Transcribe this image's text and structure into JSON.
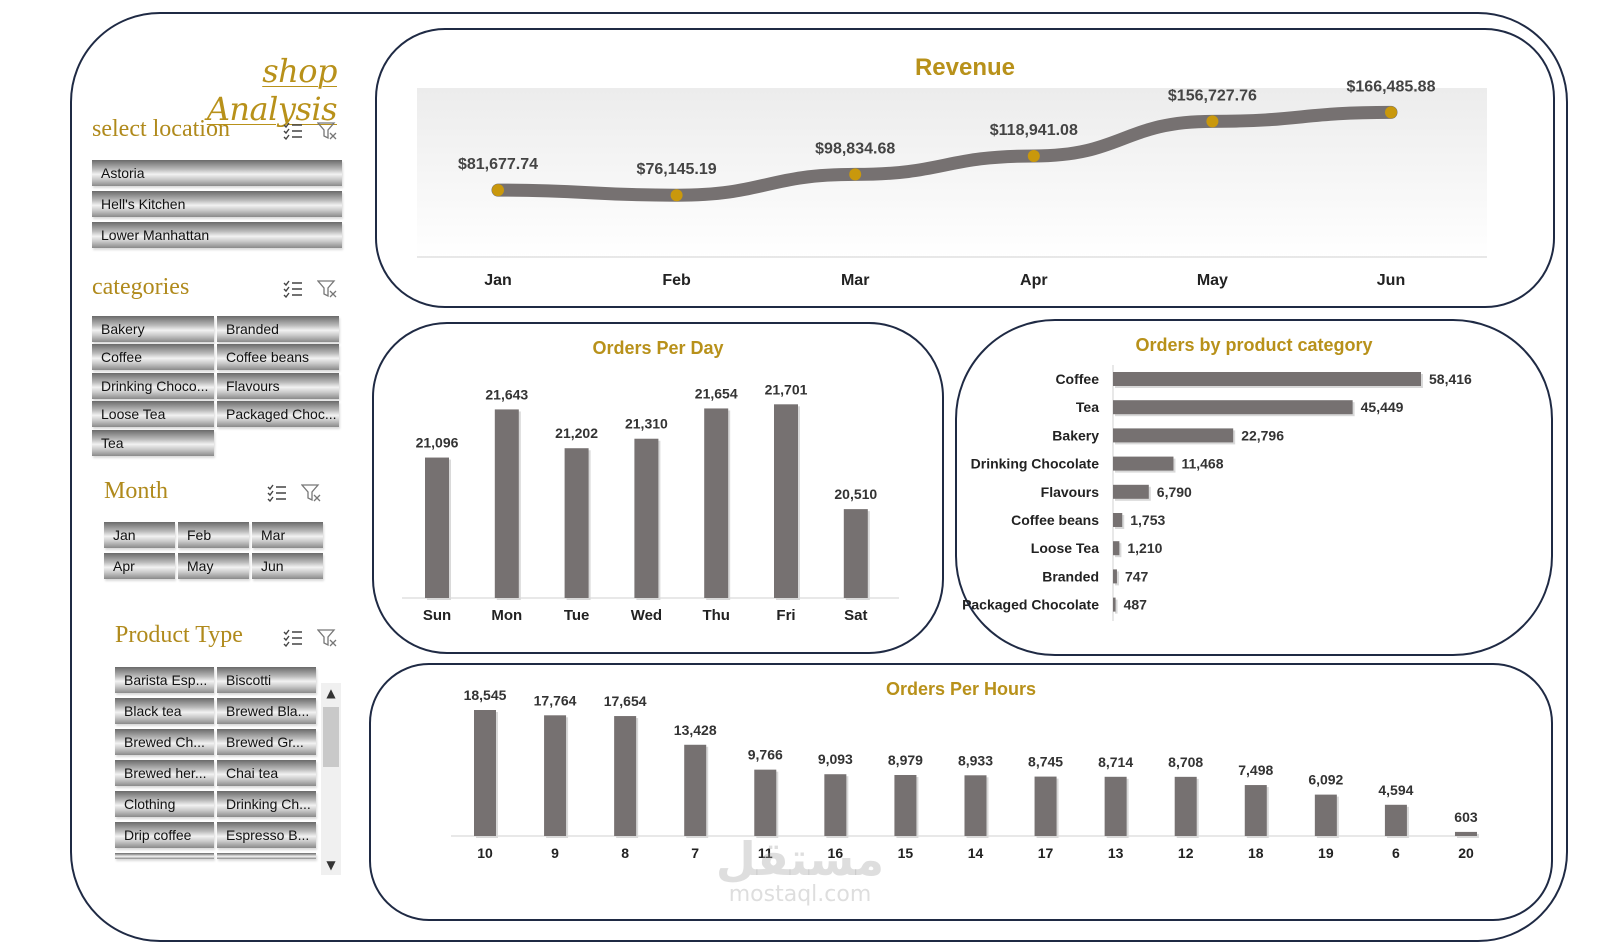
{
  "brand": "shop Analysis",
  "slicers": {
    "location": {
      "title": "select location",
      "items": [
        "Astoria",
        "Hell's Kitchen",
        "Lower Manhattan"
      ]
    },
    "categories": {
      "title": "categories",
      "items": [
        "Bakery",
        "Branded",
        "Coffee",
        "Coffee beans",
        "Drinking Choco...",
        "Flavours",
        "Loose Tea",
        "Packaged Choc...",
        "Tea"
      ]
    },
    "month": {
      "title": "Month",
      "items": [
        "Jan",
        "Feb",
        "Mar",
        "Apr",
        "May",
        "Jun"
      ]
    },
    "product_type": {
      "title": "Product Type",
      "items": [
        "Barista Esp...",
        "Biscotti",
        "Black tea",
        "Brewed Bla...",
        "Brewed Ch...",
        "Brewed Gr...",
        "Brewed her...",
        "Chai tea",
        "Clothing",
        "Drinking Ch...",
        "Drip coffee",
        "Espresso B..."
      ]
    }
  },
  "colors": {
    "gold": "#b8911a",
    "bar": "#767171",
    "navy": "#1f2a44"
  },
  "watermark": {
    "arabic": "مستقل",
    "latin": "mostaql.com"
  },
  "chart_data": [
    {
      "id": "revenue",
      "type": "line",
      "title": "Revenue",
      "categories": [
        "Jan",
        "Feb",
        "Mar",
        "Apr",
        "May",
        "Jun"
      ],
      "values": [
        81677.74,
        76145.19,
        98834.68,
        118941.08,
        156727.76,
        166485.88
      ],
      "labels": [
        "$81,677.74",
        "$76,145.19",
        "$98,834.68",
        "$118,941.08",
        "$156,727.76",
        "$166,485.88"
      ],
      "ylim": [
        60000,
        180000
      ]
    },
    {
      "id": "orders_per_day",
      "type": "bar",
      "title": "Orders Per Day",
      "categories": [
        "Sun",
        "Mon",
        "Tue",
        "Wed",
        "Thu",
        "Fri",
        "Sat"
      ],
      "values": [
        21096,
        21643,
        21202,
        21310,
        21654,
        21701,
        20510
      ],
      "labels": [
        "21,096",
        "21,643",
        "21,202",
        "21,310",
        "21,654",
        "21,701",
        "20,510"
      ],
      "ylim": [
        19500,
        22000
      ]
    },
    {
      "id": "orders_by_category",
      "type": "bar",
      "orientation": "horizontal",
      "title": "Orders by product  category",
      "categories": [
        "Coffee",
        "Tea",
        "Bakery",
        "Drinking Chocolate",
        "Flavours",
        "Coffee beans",
        "Loose Tea",
        "Branded",
        "Packaged Chocolate"
      ],
      "values": [
        58416,
        45449,
        22796,
        11468,
        6790,
        1753,
        1210,
        747,
        487
      ],
      "labels": [
        "58,416",
        "45,449",
        "22,796",
        "11,468",
        "6,790",
        "1,753",
        "1,210",
        "747",
        "487"
      ],
      "ylim": [
        0,
        58416
      ]
    },
    {
      "id": "orders_per_hours",
      "type": "bar",
      "title": "Orders  Per Hours",
      "categories": [
        "10",
        "9",
        "8",
        "7",
        "11",
        "16",
        "15",
        "14",
        "17",
        "13",
        "12",
        "18",
        "19",
        "6",
        "20"
      ],
      "values": [
        18545,
        17764,
        17654,
        13428,
        9766,
        9093,
        8979,
        8933,
        8745,
        8714,
        8708,
        7498,
        6092,
        4594,
        603
      ],
      "labels": [
        "18,545",
        "17,764",
        "17,654",
        "13,428",
        "9,766",
        "9,093",
        "8,979",
        "8,933",
        "8,745",
        "8,714",
        "8,708",
        "7,498",
        "6,092",
        "4,594",
        "603"
      ],
      "ylim": [
        0,
        18545
      ]
    }
  ]
}
